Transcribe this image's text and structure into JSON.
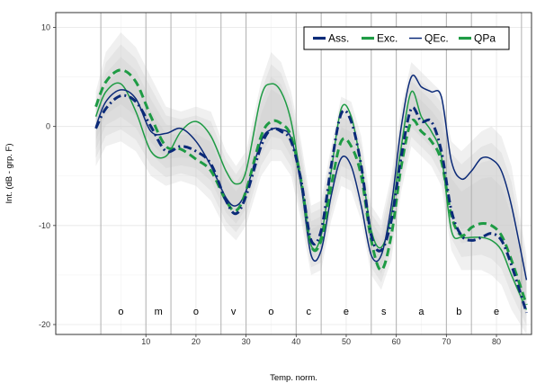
{
  "chart_data": {
    "type": "line",
    "title": "",
    "xlabel": "Temp. norm.",
    "ylabel": "Int. (dB - grp. F)",
    "xlim": [
      -8,
      87
    ],
    "ylim": [
      -21,
      11.5
    ],
    "x_ticks": [
      10,
      20,
      30,
      40,
      50,
      60,
      70,
      80
    ],
    "y_ticks": [
      -20,
      -10,
      0,
      10
    ],
    "grid": true,
    "legend_position": "top-right",
    "segment_boundaries": [
      1,
      10,
      15,
      25,
      30,
      40,
      45,
      55,
      60,
      70,
      75,
      85
    ],
    "segment_labels": [
      {
        "label": "o",
        "x": 5
      },
      {
        "label": "m",
        "x": 12.5
      },
      {
        "label": "o",
        "x": 20
      },
      {
        "label": "v",
        "x": 27.5
      },
      {
        "label": "o",
        "x": 35
      },
      {
        "label": "c",
        "x": 42.5
      },
      {
        "label": "e",
        "x": 50
      },
      {
        "label": "s",
        "x": 57.5
      },
      {
        "label": "a",
        "x": 65
      },
      {
        "label": "b",
        "x": 72.5
      },
      {
        "label": "e",
        "x": 80
      }
    ],
    "series": [
      {
        "name": "Ass.",
        "color": "#0b2a78",
        "style": "dashdot",
        "x": [
          0,
          2,
          5,
          8,
          11,
          14,
          17,
          20,
          23,
          26,
          28,
          30,
          33,
          35,
          37,
          39,
          41,
          43,
          45,
          47,
          49,
          51,
          53,
          55,
          57,
          59,
          61,
          63,
          65,
          67,
          69,
          71,
          73,
          75,
          77,
          79,
          81,
          83,
          86
        ],
        "y": [
          -0.2,
          1.8,
          3.1,
          2.5,
          0,
          -2.5,
          -2,
          -2.5,
          -3.8,
          -7.5,
          -8.8,
          -7,
          -2,
          -0.3,
          -0.5,
          -1.5,
          -5.5,
          -11.5,
          -10.5,
          -4,
          1.3,
          0.5,
          -4,
          -11,
          -12.5,
          -9.5,
          -3,
          1.8,
          0.5,
          0.5,
          -2.5,
          -8.5,
          -11,
          -11.5,
          -11.2,
          -10.8,
          -11.5,
          -14,
          -18.8
        ]
      },
      {
        "name": "Exc.",
        "color": "#1e9b44",
        "style": "dashed",
        "x": [
          0,
          2,
          5,
          8,
          11,
          14,
          17,
          20,
          23,
          26,
          28,
          30,
          33,
          35,
          37,
          39,
          41,
          43,
          45,
          47,
          49,
          51,
          53,
          55,
          57,
          59,
          61,
          63,
          65,
          67,
          69,
          71,
          73,
          75,
          77,
          79,
          81,
          83,
          86
        ],
        "y": [
          2,
          4.5,
          5.7,
          4.5,
          1,
          -2,
          -2.3,
          -3.3,
          -4.5,
          -7.5,
          -8.5,
          -6.5,
          -1,
          0.5,
          0.3,
          -1,
          -5.5,
          -12,
          -11.5,
          -6,
          -1.5,
          -2,
          -5,
          -11.5,
          -14.5,
          -11,
          -4,
          0.5,
          -0.5,
          -1.5,
          -3.5,
          -9,
          -11,
          -10.2,
          -9.8,
          -10,
          -11,
          -13.5,
          -18
        ]
      },
      {
        "name": "QEc.",
        "color": "#0b2a78",
        "style": "solid",
        "x": [
          0,
          2,
          5,
          8,
          11,
          14,
          17,
          20,
          23,
          26,
          28,
          30,
          33,
          35,
          37,
          39,
          41,
          43,
          45,
          47,
          49,
          51,
          53,
          55,
          57,
          59,
          61,
          63,
          65,
          67,
          69,
          71,
          73,
          75,
          77,
          79,
          81,
          83,
          86
        ],
        "y": [
          0,
          2.5,
          3.7,
          2.8,
          -0.5,
          -0.7,
          -0.2,
          -1.5,
          -4,
          -7.2,
          -8,
          -6.5,
          -1.5,
          -0.3,
          -0.3,
          -1.2,
          -6,
          -13,
          -12.5,
          -7,
          -3.2,
          -4,
          -8,
          -13,
          -13,
          -8,
          0,
          5,
          4,
          3.5,
          3,
          -3.5,
          -5.3,
          -4.5,
          -3.2,
          -3.3,
          -4.5,
          -8,
          -15.5
        ]
      },
      {
        "name": "QPa",
        "color": "#1e9b44",
        "style": "solid",
        "x": [
          0,
          2,
          5,
          8,
          11,
          14,
          17,
          20,
          23,
          26,
          28,
          30,
          33,
          35,
          37,
          39,
          41,
          43,
          45,
          47,
          49,
          51,
          53,
          55,
          57,
          59,
          61,
          63,
          65,
          67,
          69,
          71,
          73,
          75,
          77,
          79,
          81,
          83,
          86
        ],
        "y": [
          1,
          3.5,
          4.3,
          1.5,
          -2.5,
          -3,
          -0.5,
          0.5,
          -1,
          -4.5,
          -5.8,
          -4.5,
          3,
          4.3,
          3.5,
          0.5,
          -5.5,
          -12,
          -11,
          -4.5,
          1.8,
          1,
          -4,
          -10.5,
          -12.2,
          -9,
          -2,
          3.5,
          1,
          -0.5,
          -3,
          -10.5,
          -11.2,
          -11.2,
          -11.2,
          -11.5,
          -12.5,
          -15,
          -18.5
        ]
      }
    ],
    "bands": [
      {
        "upper": [
          3.5,
          7.5,
          9.5,
          8,
          5,
          2,
          1.5,
          2,
          1.5,
          -2.5,
          -4,
          -2.5,
          4.5,
          7.5,
          6.5,
          3.5,
          -1.5,
          -8,
          -7.5,
          -2,
          3,
          2.5,
          -1,
          -8,
          -9.5,
          -5,
          2,
          6.5,
          5.5,
          4.5,
          3.5,
          -1.5,
          -2.5,
          -1.5,
          -0.5,
          0,
          -1,
          -4,
          -13
        ]
      },
      {
        "lower": [
          -4,
          -2,
          -1.5,
          -2.5,
          -5,
          -6,
          -5.5,
          -6,
          -7.5,
          -10.5,
          -11.5,
          -10,
          -5,
          -3.5,
          -3.5,
          -5,
          -9.5,
          -15,
          -14.5,
          -9.5,
          -6,
          -6.5,
          -9.5,
          -15,
          -16.5,
          -13.5,
          -6.5,
          -2,
          -3,
          -4,
          -6,
          -12.5,
          -14.5,
          -14.5,
          -14.5,
          -15,
          -16,
          -18.5,
          -21
        ]
      }
    ]
  }
}
